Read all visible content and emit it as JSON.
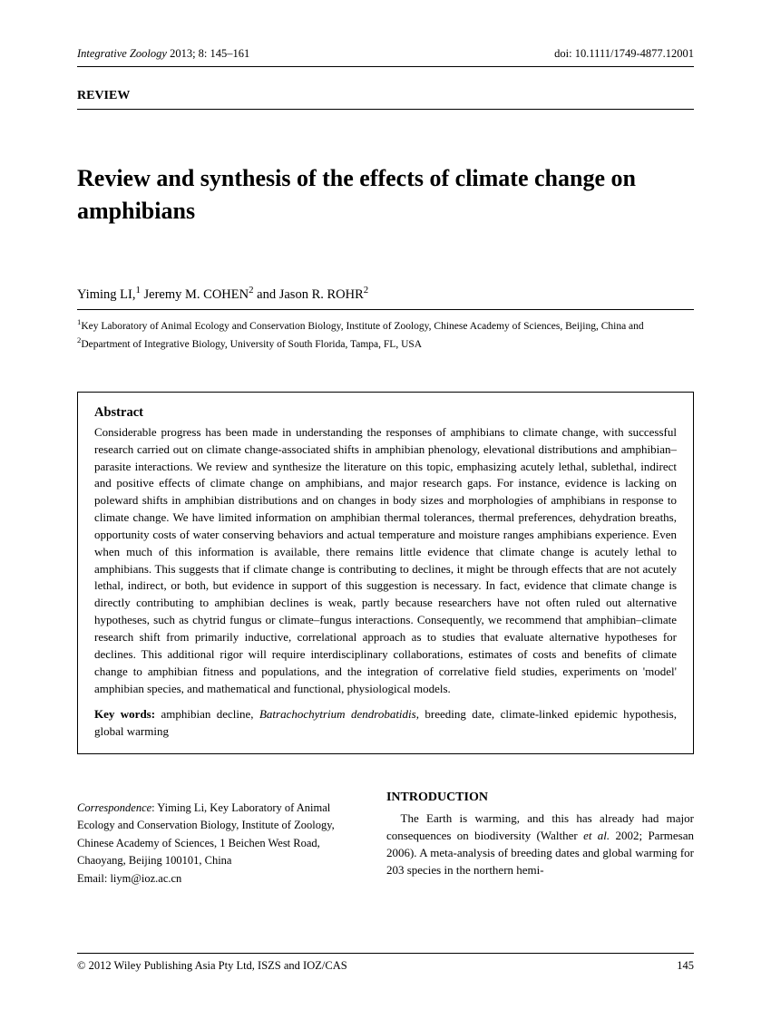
{
  "header": {
    "journal": "Integrative Zoology",
    "year_vol_pages": " 2013; 8: 145–161",
    "doi": "doi: 10.1111/1749-4877.12001"
  },
  "review_label": "REVIEW",
  "title": "Review and synthesis of the effects of climate change on amphibians",
  "authors_html": "Yiming LI,<sup>1</sup> Jeremy M. COHEN<sup>2</sup> and Jason R. ROHR<sup>2</sup>",
  "affiliations_html": "<sup>1</sup>Key Laboratory of Animal Ecology and Conservation Biology, Institute of Zoology, Chinese Academy of Sciences, Beijing, China and <sup>2</sup>Department of Integrative Biology, University of South Florida, Tampa, FL, USA",
  "abstract": {
    "heading": "Abstract",
    "text": "Considerable progress has been made in understanding the responses of amphibians to climate change, with successful research carried out on climate change-associated shifts in amphibian phenology, elevational distributions and amphibian–parasite interactions. We review and synthesize the literature on this topic, emphasizing acutely lethal, sublethal, indirect and positive effects of climate change on amphibians, and major research gaps. For instance, evidence is lacking on poleward shifts in amphibian distributions and on changes in body sizes and morphologies of amphibians in response to climate change. We have limited information on amphibian thermal tolerances, thermal preferences, dehydration breaths, opportunity costs of water conserving behaviors and actual temperature and moisture ranges amphibians experience. Even when much of this information is available, there remains little evidence that climate change is acutely lethal to amphibians. This suggests that if climate change is contributing to declines, it might be through effects that are not acutely lethal, indirect, or both, but evidence in support of this suggestion is necessary. In fact, evidence that climate change is directly contributing to amphibian declines is weak, partly because researchers have not often ruled out alternative hypotheses, such as chytrid fungus or climate–fungus interactions. Consequently, we recommend that amphibian–climate research shift from primarily inductive, correlational approach as to studies that evaluate alternative hypotheses for declines. This additional rigor will require interdisciplinary collaborations, estimates of costs and benefits of climate change to amphibian fitness and populations, and the integration of correlative field studies, experiments on 'model' amphibian species, and mathematical and functional, physiological models.",
    "keywords_label": "Key words:",
    "keywords_html": " amphibian decline, <span class=\"italic\">Batrachochytrium dendrobatidis</span>, breeding date, climate-linked epidemic hypothesis, global warming"
  },
  "correspondence": {
    "label": "Correspondence",
    "text": ": Yiming Li, Key Laboratory of Animal Ecology and Conservation Biology, Institute of Zoology, Chinese Academy of Sciences, 1 Beichen West Road, Chaoyang, Beijing 100101, China",
    "email_label": "Email: ",
    "email": "liym@ioz.ac.cn"
  },
  "introduction": {
    "heading": "INTRODUCTION",
    "text_html": "The Earth is warming, and this has already had major consequences on biodiversity (Walther <span class=\"italic\">et al.</span> 2002; Parmesan 2006). A meta-analysis of breeding dates and global warming for 203 species in the northern hemi-"
  },
  "footer": {
    "copyright": "© 2012 Wiley Publishing Asia Pty Ltd, ISZS and IOZ/CAS",
    "page_number": "145"
  }
}
